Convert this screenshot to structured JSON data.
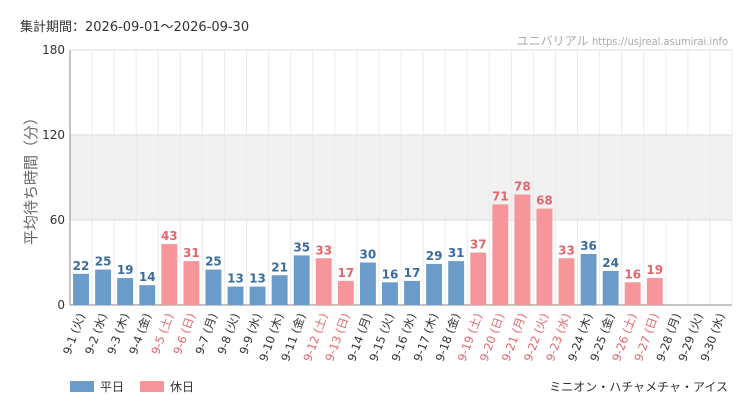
{
  "header": {
    "period_label": "集計期間：2026-09-01～2026-09-30",
    "site_name": "ユニバリアル",
    "site_url": "https://usjreal.asumirai.info"
  },
  "legend": {
    "weekday": "平日",
    "holiday": "休日"
  },
  "attraction_name": "ミニオン・ハチャメチャ・アイス",
  "colors": {
    "weekday": "#6b9bc8",
    "holiday": "#f6959a",
    "weekday_label": "#3a6d9e",
    "holiday_label": "#e0676d",
    "band": "#f1f1f1",
    "grid": "#dddddd"
  },
  "chart_data": {
    "type": "bar",
    "ylabel": "平均待ち時間（分）",
    "ylim": [
      0,
      180
    ],
    "yticks": [
      0,
      60,
      120,
      180
    ],
    "grid": true,
    "legend_position": "bottom-left",
    "categories": [
      "9-1 (火)",
      "9-2 (水)",
      "9-3 (木)",
      "9-4 (金)",
      "9-5 (土)",
      "9-6 (日)",
      "9-7 (月)",
      "9-8 (火)",
      "9-9 (水)",
      "9-10 (木)",
      "9-11 (金)",
      "9-12 (土)",
      "9-13 (日)",
      "9-14 (月)",
      "9-15 (火)",
      "9-16 (水)",
      "9-17 (木)",
      "9-18 (金)",
      "9-19 (土)",
      "9-20 (日)",
      "9-21 (月)",
      "9-22 (火)",
      "9-23 (水)",
      "9-24 (木)",
      "9-25 (金)",
      "9-26 (土)",
      "9-27 (日)",
      "9-28 (月)",
      "9-29 (火)",
      "9-30 (水)"
    ],
    "values": [
      22,
      25,
      19,
      14,
      43,
      31,
      25,
      13,
      13,
      21,
      35,
      33,
      17,
      30,
      16,
      17,
      29,
      31,
      37,
      71,
      78,
      68,
      33,
      36,
      24,
      16,
      19,
      null,
      null,
      null
    ],
    "day_type": [
      "weekday",
      "weekday",
      "weekday",
      "weekday",
      "holiday",
      "holiday",
      "weekday",
      "weekday",
      "weekday",
      "weekday",
      "weekday",
      "holiday",
      "holiday",
      "weekday",
      "weekday",
      "weekday",
      "weekday",
      "weekday",
      "holiday",
      "holiday",
      "holiday",
      "holiday",
      "holiday",
      "weekday",
      "weekday",
      "holiday",
      "holiday",
      "weekday",
      "weekday",
      "weekday"
    ]
  }
}
